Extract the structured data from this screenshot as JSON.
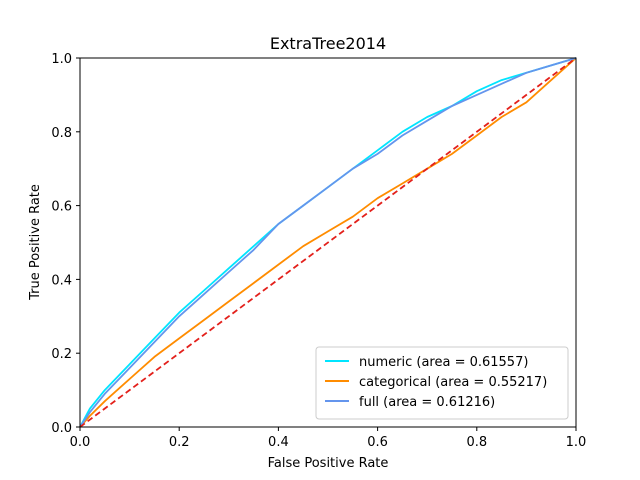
{
  "chart_data": {
    "type": "line",
    "title": "ExtraTree2014",
    "xlabel": "False Positive Rate",
    "ylabel": "True Positive Rate",
    "xlim": [
      0,
      1
    ],
    "ylim": [
      0,
      1
    ],
    "xticks": [
      "0.0",
      "0.2",
      "0.4",
      "0.6",
      "0.8",
      "1.0"
    ],
    "yticks": [
      "0.0",
      "0.2",
      "0.4",
      "0.6",
      "0.8",
      "1.0"
    ],
    "grid": false,
    "legend_position": "lower-right",
    "series": [
      {
        "name": "numeric (area = 0.61557)",
        "color": "#00e5ff",
        "style": "solid",
        "points": [
          [
            0,
            0
          ],
          [
            0.02,
            0.05
          ],
          [
            0.05,
            0.1
          ],
          [
            0.1,
            0.17
          ],
          [
            0.15,
            0.24
          ],
          [
            0.2,
            0.31
          ],
          [
            0.25,
            0.37
          ],
          [
            0.3,
            0.43
          ],
          [
            0.35,
            0.49
          ],
          [
            0.4,
            0.55
          ],
          [
            0.45,
            0.6
          ],
          [
            0.5,
            0.65
          ],
          [
            0.55,
            0.7
          ],
          [
            0.6,
            0.75
          ],
          [
            0.65,
            0.8
          ],
          [
            0.7,
            0.84
          ],
          [
            0.75,
            0.87
          ],
          [
            0.8,
            0.91
          ],
          [
            0.85,
            0.94
          ],
          [
            0.9,
            0.96
          ],
          [
            0.95,
            0.98
          ],
          [
            1,
            1
          ]
        ]
      },
      {
        "name": "categorical (area = 0.55217)",
        "color": "#ff8c00",
        "style": "solid",
        "points": [
          [
            0,
            0
          ],
          [
            0.02,
            0.03
          ],
          [
            0.05,
            0.07
          ],
          [
            0.1,
            0.13
          ],
          [
            0.15,
            0.19
          ],
          [
            0.2,
            0.24
          ],
          [
            0.25,
            0.29
          ],
          [
            0.3,
            0.34
          ],
          [
            0.35,
            0.39
          ],
          [
            0.4,
            0.44
          ],
          [
            0.45,
            0.49
          ],
          [
            0.5,
            0.53
          ],
          [
            0.55,
            0.57
          ],
          [
            0.6,
            0.62
          ],
          [
            0.65,
            0.66
          ],
          [
            0.7,
            0.7
          ],
          [
            0.75,
            0.74
          ],
          [
            0.8,
            0.79
          ],
          [
            0.85,
            0.84
          ],
          [
            0.9,
            0.88
          ],
          [
            0.95,
            0.94
          ],
          [
            1,
            1
          ]
        ]
      },
      {
        "name": "full (area = 0.61216)",
        "color": "#6495ed",
        "style": "solid",
        "points": [
          [
            0,
            0
          ],
          [
            0.02,
            0.04
          ],
          [
            0.05,
            0.09
          ],
          [
            0.1,
            0.16
          ],
          [
            0.15,
            0.23
          ],
          [
            0.2,
            0.3
          ],
          [
            0.25,
            0.36
          ],
          [
            0.3,
            0.42
          ],
          [
            0.35,
            0.48
          ],
          [
            0.4,
            0.55
          ],
          [
            0.45,
            0.6
          ],
          [
            0.5,
            0.65
          ],
          [
            0.55,
            0.7
          ],
          [
            0.6,
            0.74
          ],
          [
            0.65,
            0.79
          ],
          [
            0.7,
            0.83
          ],
          [
            0.75,
            0.87
          ],
          [
            0.8,
            0.9
          ],
          [
            0.85,
            0.93
          ],
          [
            0.9,
            0.96
          ],
          [
            0.95,
            0.98
          ],
          [
            1,
            1
          ]
        ]
      },
      {
        "name": "",
        "color": "#e3201b",
        "style": "dashed",
        "points": [
          [
            0,
            0
          ],
          [
            1,
            1
          ]
        ]
      }
    ]
  }
}
